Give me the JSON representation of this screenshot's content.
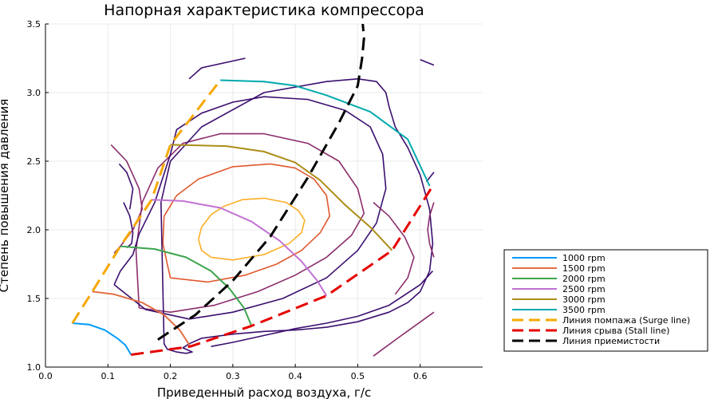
{
  "chart_data": {
    "type": "line",
    "title": "Напорная характеристика компрессора",
    "xlabel": "Приведенный расход воздуха, г/с",
    "ylabel": "Степень повышения давления",
    "xlim": [
      0.0,
      0.7
    ],
    "ylim": [
      1.0,
      3.5
    ],
    "xticks": [
      "0.0",
      "0.1",
      "0.2",
      "0.3",
      "0.4",
      "0.5",
      "0.6"
    ],
    "yticks": [
      "1.0",
      "1.5",
      "2.0",
      "2.5",
      "3.0",
      "3.5"
    ],
    "grid": true,
    "legend_position": "bottom-right",
    "series": [
      {
        "name": "1000 rpm",
        "color": "#009af9",
        "dash": "solid",
        "x": [
          0.043,
          0.07,
          0.095,
          0.115,
          0.128,
          0.137
        ],
        "y": [
          1.32,
          1.31,
          1.27,
          1.21,
          1.16,
          1.09
        ]
      },
      {
        "name": "1500 rpm",
        "color": "#e26f46",
        "dash": "solid",
        "x": [
          0.075,
          0.11,
          0.155,
          0.19,
          0.215,
          0.232
        ],
        "y": [
          1.55,
          1.53,
          1.47,
          1.38,
          1.27,
          1.15
        ]
      },
      {
        "name": "2000 rpm",
        "color": "#3da44d",
        "dash": "solid",
        "x": [
          0.12,
          0.175,
          0.225,
          0.265,
          0.295,
          0.318,
          0.33
        ],
        "y": [
          1.88,
          1.86,
          1.8,
          1.7,
          1.57,
          1.43,
          1.3
        ]
      },
      {
        "name": "2500 rpm",
        "color": "#c271d2",
        "dash": "solid",
        "x": [
          0.17,
          0.22,
          0.28,
          0.33,
          0.375,
          0.41,
          0.435,
          0.45
        ],
        "y": [
          2.22,
          2.21,
          2.16,
          2.06,
          1.92,
          1.77,
          1.63,
          1.52
        ]
      },
      {
        "name": "3000 rpm",
        "color": "#ac8d18",
        "dash": "solid",
        "x": [
          0.2,
          0.29,
          0.35,
          0.4,
          0.44,
          0.48,
          0.52,
          0.555
        ],
        "y": [
          2.62,
          2.61,
          2.57,
          2.49,
          2.36,
          2.18,
          2.02,
          1.85
        ]
      },
      {
        "name": "3500 rpm",
        "color": "#00a9ad",
        "dash": "solid",
        "x": [
          0.28,
          0.35,
          0.4,
          0.45,
          0.52,
          0.58,
          0.615
        ],
        "y": [
          3.09,
          3.08,
          3.05,
          2.98,
          2.86,
          2.66,
          2.32
        ]
      },
      {
        "name": "Линия помпажа (Surge line)",
        "color": "#f6a800",
        "dash": "dashed",
        "x": [
          0.043,
          0.075,
          0.12,
          0.17,
          0.2,
          0.28
        ],
        "y": [
          1.32,
          1.55,
          1.88,
          2.22,
          2.62,
          3.09
        ]
      },
      {
        "name": "Линия срыва (Stall line)",
        "color": "#e60000",
        "dash": "dashed",
        "x": [
          0.137,
          0.232,
          0.33,
          0.45,
          0.555,
          0.62
        ],
        "y": [
          1.09,
          1.15,
          1.3,
          1.52,
          1.85,
          2.32
        ]
      },
      {
        "name": "Линия приемистости",
        "color": "#000000",
        "dash": "dashed",
        "x": [
          0.18,
          0.24,
          0.3,
          0.36,
          0.42,
          0.47,
          0.5,
          0.507,
          0.51,
          0.507
        ],
        "y": [
          1.2,
          1.38,
          1.63,
          1.95,
          2.38,
          2.78,
          3.05,
          3.25,
          3.4,
          3.55
        ]
      }
    ],
    "contours": [
      {
        "color": "#fdae25",
        "x": [
          0.265,
          0.3,
          0.35,
          0.39,
          0.41,
          0.415,
          0.405,
          0.385,
          0.35,
          0.315,
          0.285,
          0.265,
          0.25,
          0.245,
          0.25,
          0.265
        ],
        "y": [
          1.8,
          1.78,
          1.82,
          1.9,
          1.98,
          2.07,
          2.14,
          2.2,
          2.23,
          2.22,
          2.17,
          2.11,
          2.02,
          1.93,
          1.85,
          1.8
        ]
      },
      {
        "color": "#e0582e",
        "x": [
          0.2,
          0.26,
          0.32,
          0.37,
          0.41,
          0.44,
          0.455,
          0.45,
          0.43,
          0.4,
          0.36,
          0.3,
          0.245,
          0.21,
          0.19,
          0.188,
          0.195,
          0.2
        ],
        "y": [
          1.65,
          1.62,
          1.67,
          1.75,
          1.85,
          1.98,
          2.1,
          2.25,
          2.37,
          2.45,
          2.48,
          2.46,
          2.37,
          2.25,
          2.1,
          1.9,
          1.75,
          1.65
        ]
      },
      {
        "color": "#8b2d6c",
        "x": [
          0.15,
          0.2,
          0.27,
          0.34,
          0.4,
          0.45,
          0.49,
          0.51,
          0.5,
          0.47,
          0.42,
          0.35,
          0.28,
          0.22,
          0.18,
          0.155,
          0.145,
          0.15
        ],
        "y": [
          1.43,
          1.4,
          1.45,
          1.55,
          1.67,
          1.8,
          1.96,
          2.12,
          2.3,
          2.5,
          2.63,
          2.7,
          2.7,
          2.63,
          2.45,
          2.2,
          1.85,
          1.43
        ]
      },
      {
        "color": "#3b0f6f",
        "x": [
          0.11,
          0.16,
          0.23,
          0.3,
          0.38,
          0.45,
          0.5,
          0.53,
          0.545,
          0.54,
          0.52,
          0.48,
          0.42,
          0.35,
          0.3,
          0.25,
          0.21,
          0.2,
          0.175,
          0.15,
          0.14,
          0.12,
          0.11
        ],
        "y": [
          1.6,
          1.42,
          1.35,
          1.4,
          1.5,
          1.65,
          1.85,
          2.05,
          2.3,
          2.55,
          2.75,
          2.87,
          2.95,
          2.97,
          2.93,
          2.85,
          2.73,
          2.55,
          2.2,
          1.97,
          1.82,
          1.7,
          1.6
        ]
      },
      {
        "color": "#3b0f6f",
        "x": [
          0.185,
          0.2,
          0.25,
          0.35,
          0.45,
          0.5,
          0.53,
          0.545,
          0.55,
          0.56,
          0.58,
          0.6,
          0.615,
          0.62,
          0.615,
          0.6,
          0.58,
          0.55,
          0.5,
          0.45,
          0.4,
          0.35,
          0.3,
          0.25,
          0.23,
          0.22,
          0.23,
          0.235,
          0.225,
          0.21,
          0.195,
          0.19,
          0.185
        ],
        "y": [
          2.2,
          2.5,
          2.75,
          3.0,
          3.08,
          3.1,
          3.08,
          3.0,
          2.9,
          2.75,
          2.6,
          2.4,
          2.15,
          1.9,
          1.7,
          1.55,
          1.47,
          1.4,
          1.33,
          1.29,
          1.27,
          1.26,
          1.24,
          1.21,
          1.17,
          1.14,
          1.12,
          1.11,
          1.1,
          1.11,
          1.13,
          1.17,
          2.2
        ]
      },
      {
        "color": "#3b0f6f",
        "x": [
          0.13,
          0.138,
          0.14,
          0.135,
          0.125
        ],
        "y": [
          1.87,
          1.9,
          1.98,
          2.1,
          2.2
        ]
      },
      {
        "color": "#3b0f6f",
        "x": [
          0.135,
          0.14,
          0.13,
          0.118
        ],
        "y": [
          2.15,
          2.3,
          2.42,
          2.48
        ]
      },
      {
        "color": "#3b0f6f",
        "x": [
          0.265,
          0.3,
          0.35,
          0.4,
          0.45,
          0.5,
          0.55,
          0.6,
          0.62
        ],
        "y": [
          1.15,
          1.18,
          1.23,
          1.28,
          1.32,
          1.37,
          1.45,
          1.6,
          1.7
        ]
      },
      {
        "color": "#3b0f6f",
        "x": [
          0.23,
          0.25,
          0.32
        ],
        "y": [
          3.1,
          3.18,
          3.25
        ]
      },
      {
        "color": "#3b0f6f",
        "x": [
          0.6,
          0.622
        ],
        "y": [
          3.24,
          3.2
        ]
      },
      {
        "color": "#3b0f6f",
        "x": [
          0.61,
          0.622
        ],
        "y": [
          2.35,
          2.42
        ]
      },
      {
        "color": "#8b2d6c",
        "x": [
          0.105,
          0.13,
          0.15,
          0.155,
          0.14,
          0.12,
          0.11
        ],
        "y": [
          2.62,
          2.5,
          2.3,
          2.15,
          2.0,
          1.88,
          1.83
        ]
      },
      {
        "color": "#8b2d6c",
        "x": [
          0.56,
          0.58,
          0.59,
          0.575,
          0.55,
          0.525
        ],
        "y": [
          1.53,
          1.65,
          1.8,
          1.95,
          2.1,
          2.2
        ]
      },
      {
        "color": "#8b2d6c",
        "x": [
          0.622,
          0.615,
          0.612,
          0.615,
          0.622
        ],
        "y": [
          2.2,
          2.1,
          2.0,
          1.9,
          1.8
        ]
      },
      {
        "color": "#8b2d6c",
        "x": [
          0.525,
          0.57,
          0.622
        ],
        "y": [
          1.08,
          1.23,
          1.4
        ]
      }
    ]
  }
}
